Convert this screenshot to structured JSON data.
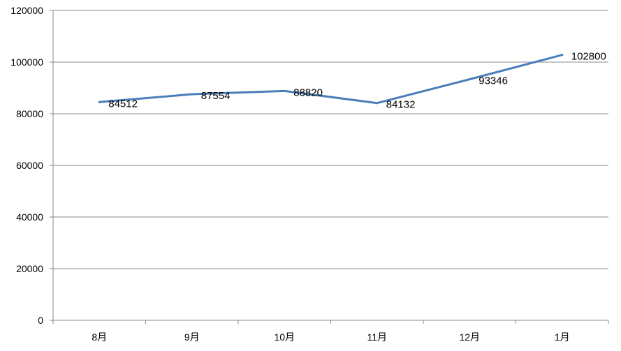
{
  "chart_data": {
    "type": "line",
    "categories": [
      "8月",
      "9月",
      "10月",
      "11月",
      "12月",
      "1月"
    ],
    "series": [
      {
        "values": [
          84512,
          87554,
          88820,
          84132,
          93346,
          102800
        ],
        "color": "#4a7ebb"
      }
    ],
    "yticks": [
      "0",
      "20000",
      "40000",
      "60000",
      "80000",
      "100000",
      "120000"
    ],
    "ylim": [
      0,
      120000
    ],
    "grid": true,
    "data_labels": [
      "84512",
      "87554",
      "88820",
      "84132",
      "93346",
      "102800"
    ],
    "gridline_color": "#898989",
    "axis_color": "#898989"
  }
}
